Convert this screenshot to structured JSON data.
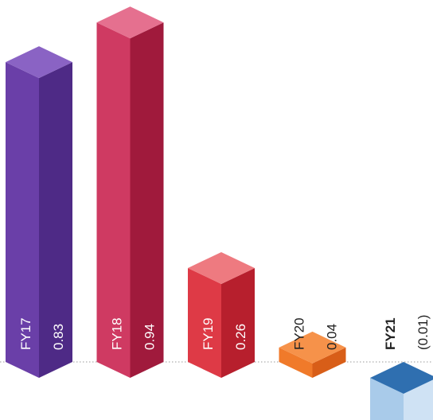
{
  "chart_data": {
    "type": "bar",
    "style": "3d-columns",
    "categories": [
      "FY17",
      "FY18",
      "FY19",
      "FY20",
      "FY21"
    ],
    "values": [
      0.83,
      0.94,
      0.26,
      0.04,
      -0.01
    ],
    "value_labels": [
      "0.83",
      "0.94",
      "0.26",
      "0.04",
      "(0.01)"
    ],
    "ylim": [
      -0.1,
      1.0
    ],
    "baseline_style": "dotted",
    "grid": false,
    "legend": "none",
    "title": "",
    "xlabel": "",
    "ylabel": "",
    "colors": {
      "FY17": {
        "front": "#6a3fa8",
        "side": "#4e2a86",
        "top": "#8a63c4"
      },
      "FY18": {
        "front": "#cf3a62",
        "side": "#a01a3c",
        "top": "#e5708f"
      },
      "FY19": {
        "front": "#de3a46",
        "side": "#b71f2d",
        "top": "#ee7a80"
      },
      "FY20": {
        "front": "#f07a2a",
        "side": "#d85e18",
        "top": "#f6924a"
      },
      "FY21": {
        "front": "#a9cbea",
        "side": "#cfe2f4",
        "top": "#2f6fb0"
      }
    },
    "label_colors": {
      "FY17": "#ffffff",
      "FY18": "#ffffff",
      "FY19": "#ffffff",
      "FY20": "#222222",
      "FY21": "#222222"
    },
    "bold_categories": [
      "FY21"
    ]
  }
}
